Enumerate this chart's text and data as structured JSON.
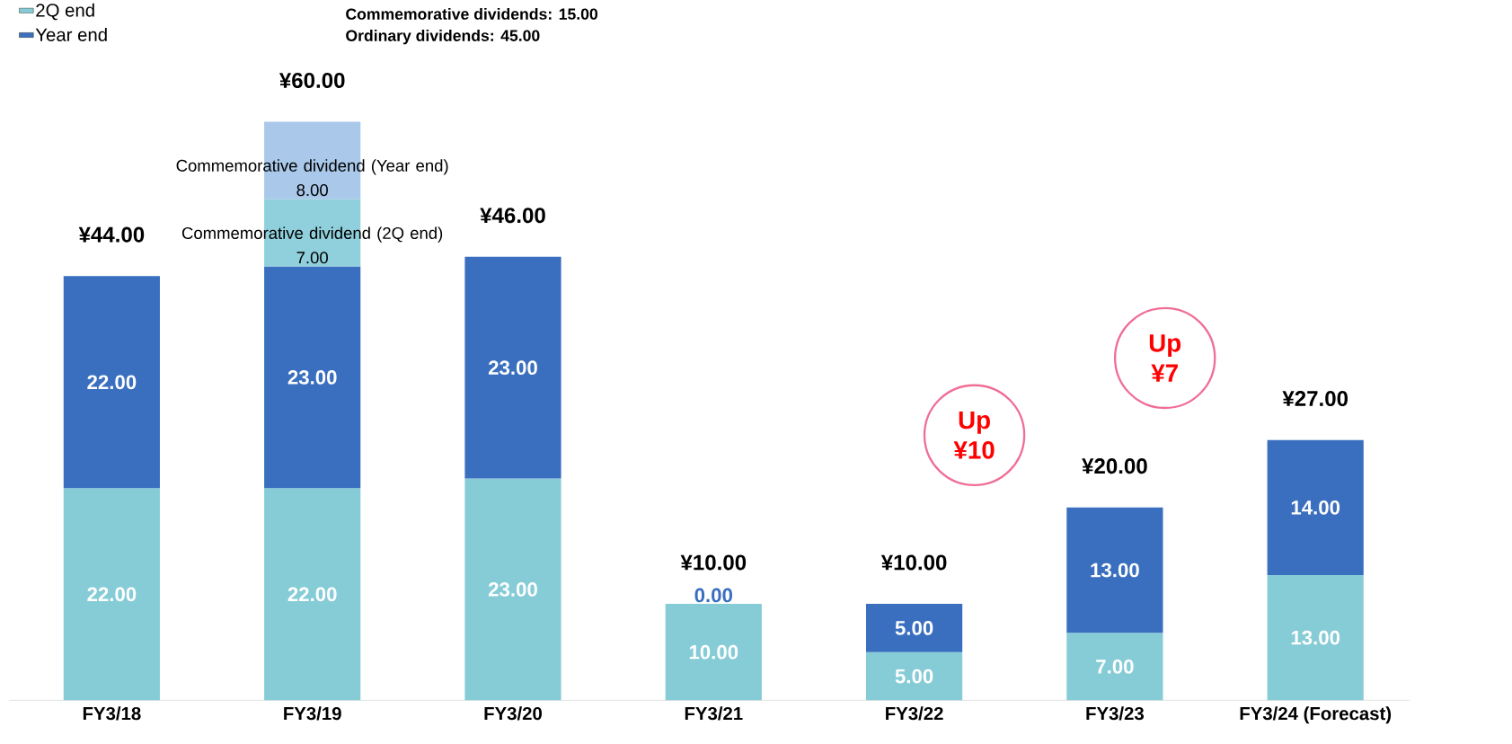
{
  "chart_data": {
    "type": "bar",
    "stacked": true,
    "categories": [
      "FY3/18",
      "FY3/19",
      "FY3/20",
      "FY3/21",
      "FY3/22",
      "FY3/23",
      "FY3/24 (Forecast)"
    ],
    "series": [
      {
        "name": "2Q end",
        "color": "#86ccd6",
        "values": [
          22,
          22,
          23,
          10,
          5,
          7,
          13
        ],
        "value_labels": [
          "22.00",
          "22.00",
          "23.00",
          "10.00",
          "5.00",
          "7.00",
          "13.00"
        ]
      },
      {
        "name": "Year end",
        "color": "#3a6fbf",
        "values": [
          22,
          23,
          23,
          0,
          5,
          13,
          14
        ],
        "value_labels": [
          "22.00",
          "23.00",
          "23.00",
          "0.00",
          "5.00",
          "13.00",
          "14.00"
        ]
      },
      {
        "name": "Commemorative dividend (2Q end)",
        "color": "#8fd0dc",
        "values": [
          null,
          7,
          null,
          null,
          null,
          null,
          null
        ],
        "value_labels": [
          null,
          "7.00",
          null,
          null,
          null,
          null,
          null
        ]
      },
      {
        "name": "Commemorative dividend (Year end)",
        "color": "#a9c8ea",
        "values": [
          null,
          8,
          null,
          null,
          null,
          null,
          null
        ],
        "value_labels": [
          null,
          "8.00",
          null,
          null,
          null,
          null,
          null
        ]
      }
    ],
    "totals": [
      "¥44.00",
      "¥60.00",
      "¥46.00",
      "¥10.00",
      "¥10.00",
      "¥20.00",
      "¥27.00"
    ],
    "tick_labels": "x",
    "legend": "top left",
    "annotations": [
      "Commemorative dividends: 15.00",
      "Ordinary dividends: 45.00",
      "Up ¥10",
      "Up ¥7"
    ]
  }
}
